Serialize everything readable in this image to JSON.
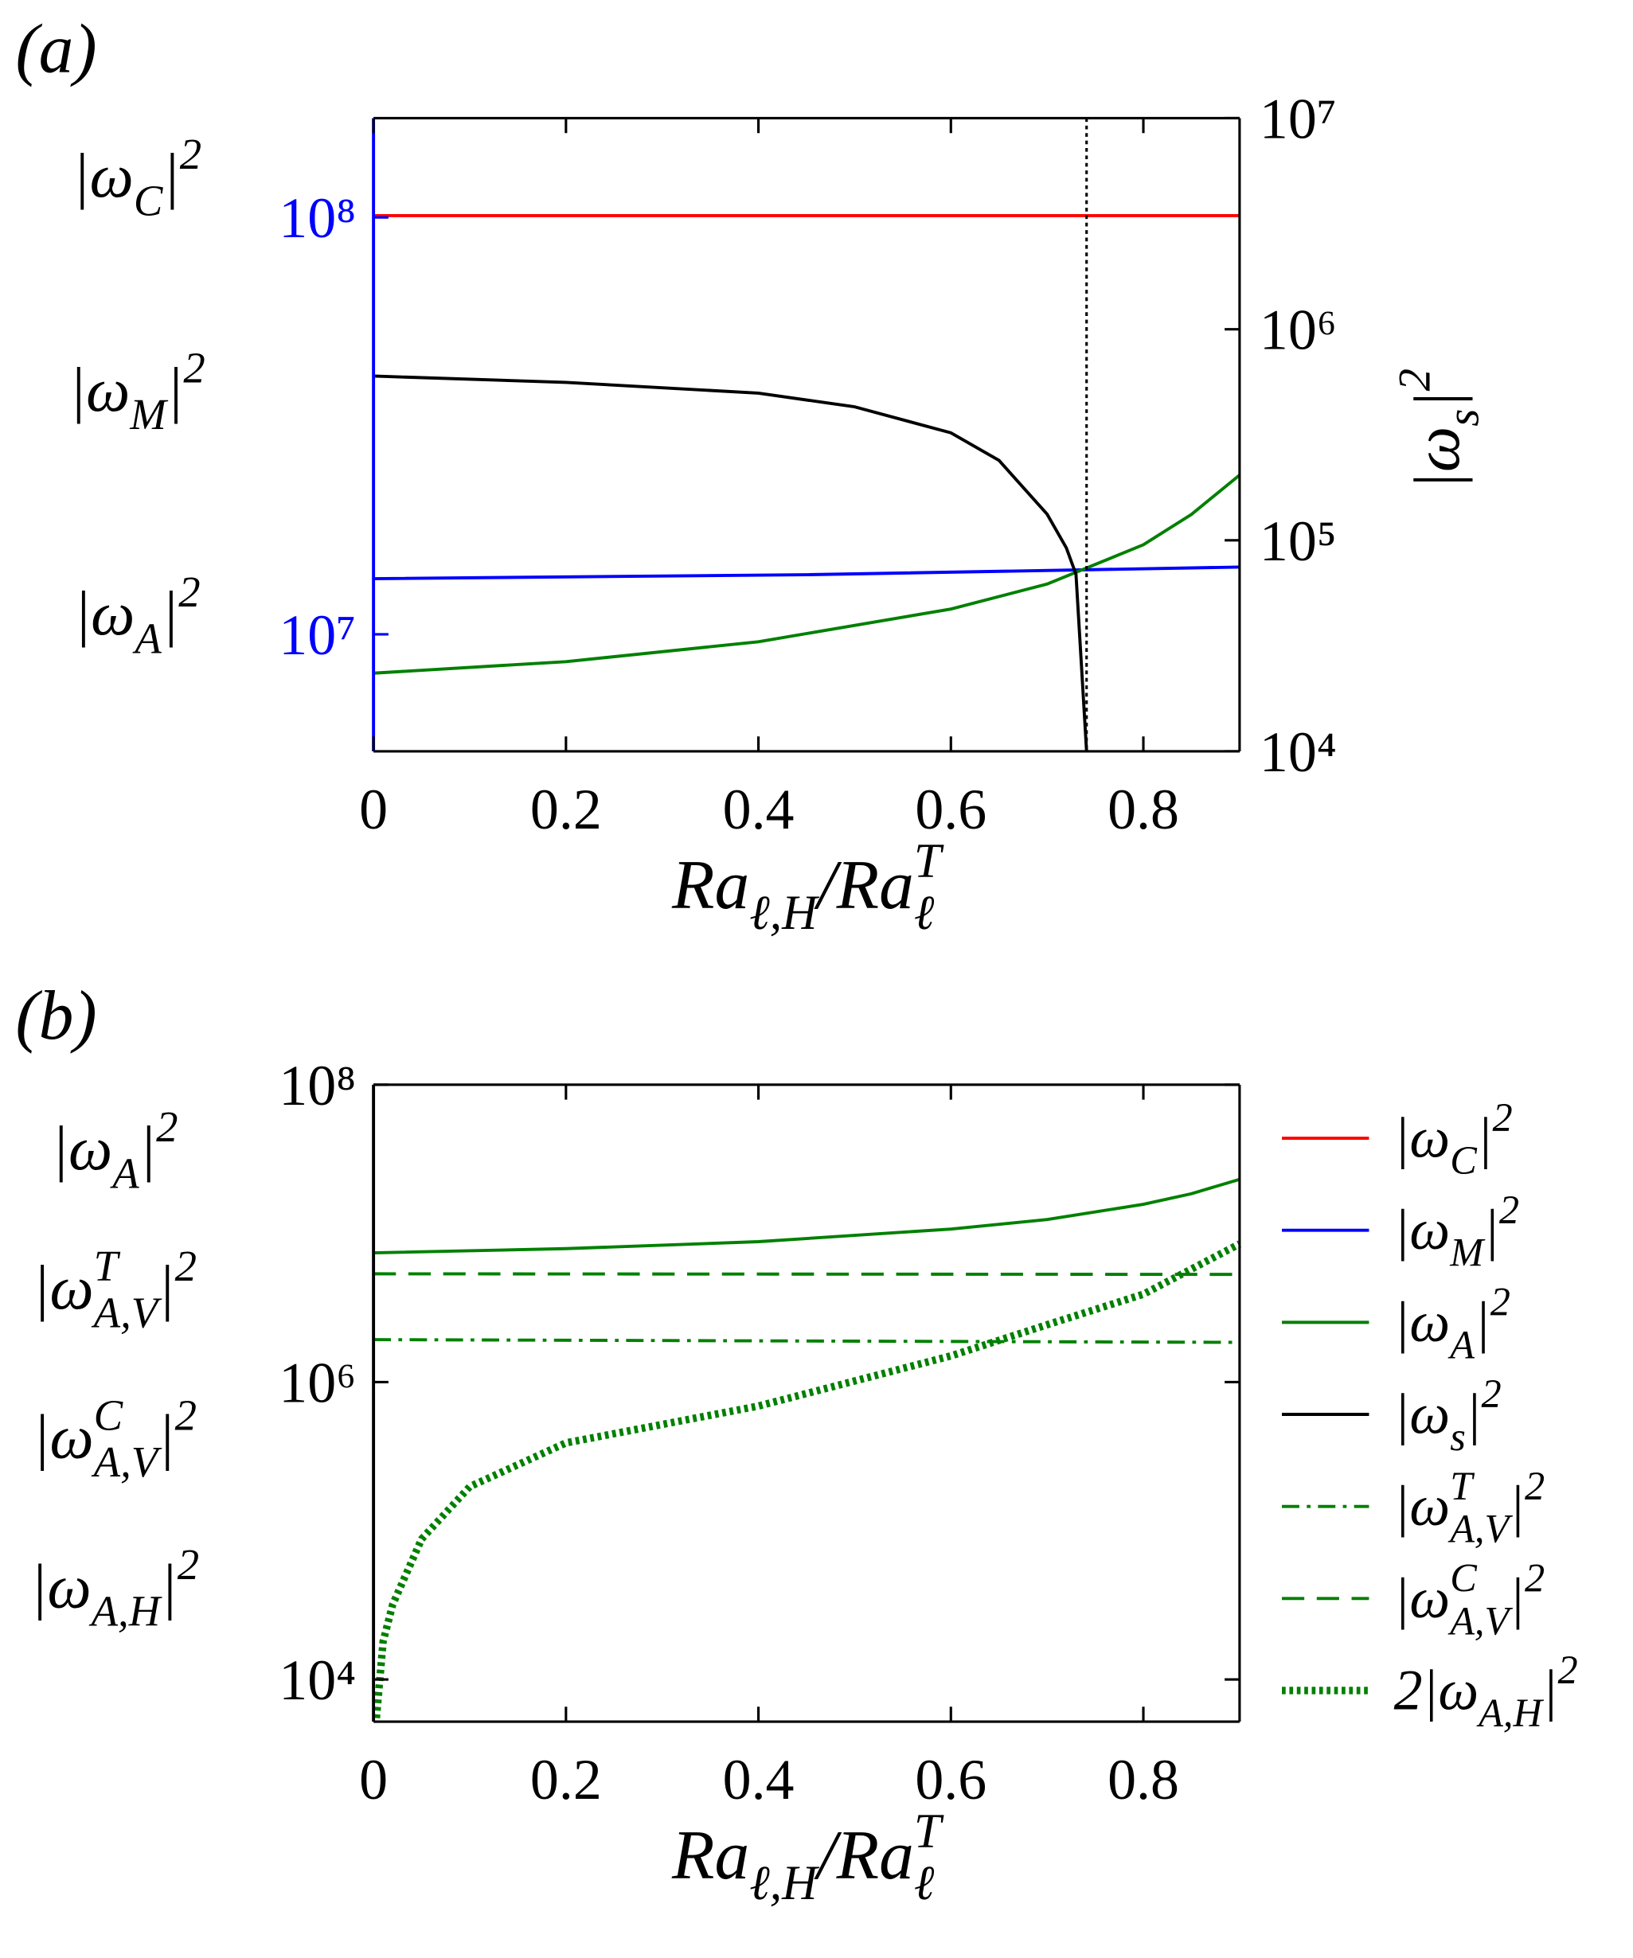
{
  "chart_data": [
    {
      "type": "line",
      "panel_label": "(a)",
      "x_label": [
        {
          "t": "Ra"
        },
        {
          "sub": "ℓ,H"
        },
        {
          "t": "/Ra"
        },
        {
          "sup": "T",
          "sub": "ℓ"
        }
      ],
      "y2_label": [
        {
          "t": "|ω"
        },
        {
          "sub": "s"
        },
        {
          "t": "|"
        },
        {
          "sup": "2"
        }
      ],
      "annotations": [
        [
          {
            "t": "|ω"
          },
          {
            "sub": "C"
          },
          {
            "t": "|"
          },
          {
            "sup": "2"
          }
        ],
        [
          {
            "t": "|ω"
          },
          {
            "sub": "M"
          },
          {
            "t": "|"
          },
          {
            "sup": "2"
          }
        ],
        [
          {
            "t": "|ω"
          },
          {
            "sub": "A"
          },
          {
            "t": "|"
          },
          {
            "sup": "2"
          }
        ]
      ],
      "xlim": [
        0,
        0.9
      ],
      "xticks": [
        0,
        0.2,
        0.4,
        0.6,
        0.8
      ],
      "ylim": [
        5240000,
        173000000
      ],
      "y_log": true,
      "y_axis_color": "#0000ff",
      "yticks": [
        {
          "value": 10000000,
          "label": "10⁷"
        },
        {
          "value": 100000000,
          "label": "10⁸"
        }
      ],
      "y2lim": [
        10000,
        10000000
      ],
      "y2_log": true,
      "y2ticks": [
        {
          "value": 10000,
          "label": "10⁴"
        },
        {
          "value": 100000,
          "label": "10⁵"
        },
        {
          "value": 1000000,
          "label": "10⁶"
        },
        {
          "value": 10000000,
          "label": "10⁷"
        }
      ],
      "vline": {
        "x": 0.741,
        "color": "#000000",
        "style": "dotted"
      },
      "series": [
        {
          "color": "#ff0000",
          "style": "solid",
          "x": [
            0,
            0.9
          ],
          "values": [
            101000000,
            101000000
          ]
        },
        {
          "color": "#0000ff",
          "style": "solid",
          "x": [
            0,
            0.45,
            0.9
          ],
          "values": [
            13600000,
            13900000,
            14500000
          ]
        },
        {
          "color": "#008000",
          "style": "solid",
          "x": [
            0,
            0.2,
            0.4,
            0.6,
            0.7,
            0.8,
            0.85,
            0.9
          ],
          "values": [
            8070000,
            8600000,
            9600000,
            11500000,
            13200000,
            16400000,
            19400000,
            24100000
          ]
        },
        {
          "color": "#000000",
          "style": "solid",
          "axis": "y2",
          "x": [
            0,
            0.2,
            0.4,
            0.5,
            0.6,
            0.65,
            0.7,
            0.72,
            0.73,
            0.741
          ],
          "values": [
            600000,
            560000,
            498000,
            429000,
            323000,
            239000,
            133000,
            92000,
            69000,
            10000
          ]
        }
      ]
    },
    {
      "type": "line",
      "panel_label": "(b)",
      "x_label": [
        {
          "t": "Ra"
        },
        {
          "sub": "ℓ,H"
        },
        {
          "t": "/Ra"
        },
        {
          "sup": "T",
          "sub": "ℓ"
        }
      ],
      "annotations": [
        [
          {
            "t": "|ω"
          },
          {
            "sub": "A"
          },
          {
            "t": "|"
          },
          {
            "sup": "2"
          }
        ],
        [
          {
            "t": "|ω"
          },
          {
            "sup": "T",
            "sub": "A,V"
          },
          {
            "t": "|"
          },
          {
            "sup": "2"
          }
        ],
        [
          {
            "t": "|ω"
          },
          {
            "sup": "C",
            "sub": "A,V"
          },
          {
            "t": "|"
          },
          {
            "sup": "2"
          }
        ],
        [
          {
            "t": "|ω"
          },
          {
            "sub": "A,H"
          },
          {
            "t": "|"
          },
          {
            "sup": "2"
          }
        ]
      ],
      "xlim": [
        0,
        0.9
      ],
      "xticks": [
        0,
        0.2,
        0.4,
        0.6,
        0.8
      ],
      "ylim": [
        5200,
        100000000
      ],
      "y_log": true,
      "y_axis_color": "#000000",
      "yticks": [
        {
          "value": 10000,
          "label": "10⁴"
        },
        {
          "value": 1000000,
          "label": "10⁶"
        },
        {
          "value": 100000000,
          "label": "10⁸"
        }
      ],
      "series": [
        {
          "color": "#008000",
          "style": "solid",
          "x": [
            0,
            0.2,
            0.4,
            0.6,
            0.7,
            0.8,
            0.85,
            0.9
          ],
          "values": [
            7400000,
            7900000,
            8800000,
            10700000,
            12400000,
            15700000,
            18500000,
            23100000
          ]
        },
        {
          "color": "#008000",
          "style": "dashdot",
          "x": [
            0,
            0.9
          ],
          "values": [
            1930000,
            1850000
          ]
        },
        {
          "color": "#008000",
          "style": "dashed",
          "x": [
            0,
            0.9
          ],
          "values": [
            5350000,
            5300000
          ]
        },
        {
          "color": "#008000",
          "style": "dotted",
          "x": [
            0.003,
            0.01,
            0.02,
            0.05,
            0.1,
            0.2,
            0.4,
            0.6,
            0.7,
            0.8,
            0.9
          ],
          "values": [
            5500,
            18000,
            32000,
            88000,
            198000,
            390000,
            690000,
            1500000,
            2430000,
            3900000,
            8500000
          ]
        }
      ],
      "legend": [
        {
          "color": "#ff0000",
          "style": "solid",
          "label": [
            {
              "t": "|ω"
            },
            {
              "sub": "C"
            },
            {
              "t": "|"
            },
            {
              "sup": "2"
            }
          ]
        },
        {
          "color": "#0000ff",
          "style": "solid",
          "label": [
            {
              "t": "|ω"
            },
            {
              "sub": "M"
            },
            {
              "t": "|"
            },
            {
              "sup": "2"
            }
          ]
        },
        {
          "color": "#008000",
          "style": "solid",
          "label": [
            {
              "t": "|ω"
            },
            {
              "sub": "A"
            },
            {
              "t": "|"
            },
            {
              "sup": "2"
            }
          ]
        },
        {
          "color": "#000000",
          "style": "solid",
          "label": [
            {
              "t": "|ω"
            },
            {
              "sub": "s"
            },
            {
              "t": "|"
            },
            {
              "sup": "2"
            }
          ]
        },
        {
          "color": "#008000",
          "style": "dashdot",
          "label": [
            {
              "t": "|ω"
            },
            {
              "sup": "T",
              "sub": "A,V"
            },
            {
              "t": "|"
            },
            {
              "sup": "2"
            }
          ]
        },
        {
          "color": "#008000",
          "style": "dashed",
          "label": [
            {
              "t": "|ω"
            },
            {
              "sup": "C",
              "sub": "A,V"
            },
            {
              "t": "|"
            },
            {
              "sup": "2"
            }
          ]
        },
        {
          "color": "#008000",
          "style": "dotted",
          "label": [
            {
              "t": "2|ω"
            },
            {
              "sub": "A,H"
            },
            {
              "t": "|"
            },
            {
              "sup": "2"
            }
          ]
        }
      ]
    }
  ]
}
